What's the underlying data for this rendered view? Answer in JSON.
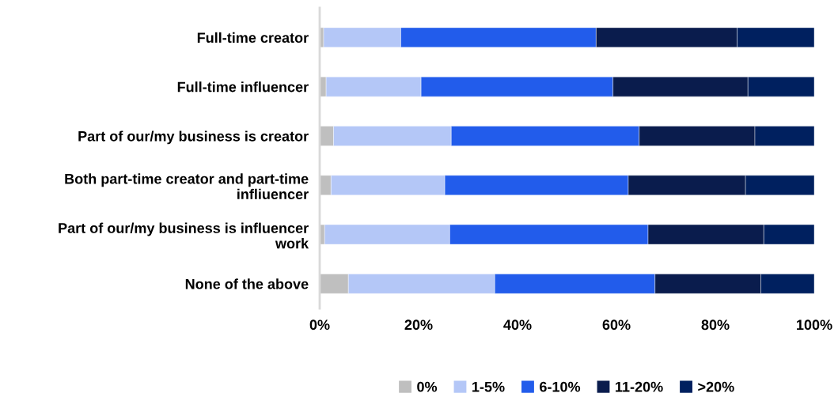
{
  "chart_data": {
    "type": "bar",
    "orientation": "horizontal",
    "stacked": true,
    "legend": "bottom",
    "grid": false,
    "categories": [
      "Full-time creator",
      "Full-time influencer",
      "Part of our/my business is creator",
      "Both part-time creator and part-time\ninfliuencer",
      "Part of our/my business is influencer\nwork",
      "None of the above"
    ],
    "series": [
      {
        "name": "0%",
        "color": "#bfbfbf",
        "values": [
          0.8,
          1.3,
          2.8,
          2.3,
          1.0,
          5.8
        ]
      },
      {
        "name": "1-5%",
        "color": "#b4c7f7",
        "values": [
          15.6,
          19.2,
          23.8,
          23.0,
          25.3,
          29.6
        ]
      },
      {
        "name": "6-10%",
        "color": "#225ceb",
        "values": [
          39.5,
          38.8,
          38.0,
          37.1,
          40.1,
          32.4
        ]
      },
      {
        "name": "11-20%",
        "color": "#0a1c4d",
        "values": [
          28.5,
          27.3,
          23.4,
          23.7,
          23.4,
          21.4
        ]
      },
      {
        "name": ">20%",
        "color": "#00205f",
        "values": [
          15.6,
          13.4,
          12.0,
          13.9,
          10.2,
          10.8
        ]
      }
    ],
    "xlim": [
      0,
      100
    ],
    "xticks": [
      {
        "value": 0,
        "label": "0%"
      },
      {
        "value": 20,
        "label": "20%"
      },
      {
        "value": 40,
        "label": "40%"
      },
      {
        "value": 60,
        "label": "60%"
      },
      {
        "value": 80,
        "label": "80%"
      },
      {
        "value": 100,
        "label": "100%"
      }
    ]
  }
}
